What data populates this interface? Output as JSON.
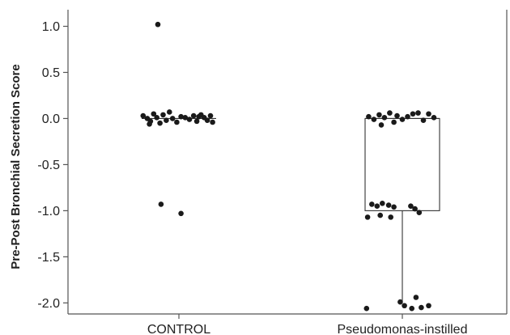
{
  "chart_data": {
    "type": "scatter",
    "subtype": "box-plot-with-jittered-points",
    "title": "",
    "xlabel": "",
    "ylabel": "Pre-Post Bronchial Secretion Score",
    "ylim": [
      -2.12,
      1.18
    ],
    "y_ticks": [
      1.0,
      0.5,
      0.0,
      -0.5,
      -1.0,
      -1.5,
      -2.0
    ],
    "y_tick_labels": [
      "1.0",
      "0.5",
      "0.0",
      "-0.5",
      "-1.0",
      "-1.5",
      "-2.0"
    ],
    "categories": [
      "CONTROL",
      "Pseudomonas-instilled"
    ],
    "grid": false,
    "legend": "none",
    "colors": {
      "points": "#1a1a1a",
      "box": "#333333",
      "axis": "#555555"
    },
    "series": [
      {
        "category": "CONTROL",
        "box": {
          "min": 0.0,
          "q1": 0.0,
          "median": 0.0,
          "q3": 0.0,
          "max": 0.0
        },
        "points": [
          {
            "x": -0.2,
            "y": 1.02
          },
          {
            "x": -0.34,
            "y": 0.03
          },
          {
            "x": -0.3,
            "y": 0.0
          },
          {
            "x": -0.27,
            "y": -0.03
          },
          {
            "x": -0.24,
            "y": 0.05
          },
          {
            "x": -0.21,
            "y": 0.01
          },
          {
            "x": -0.18,
            "y": -0.05
          },
          {
            "x": -0.15,
            "y": 0.04
          },
          {
            "x": -0.12,
            "y": -0.02
          },
          {
            "x": -0.09,
            "y": 0.07
          },
          {
            "x": -0.06,
            "y": 0.0
          },
          {
            "x": -0.02,
            "y": -0.04
          },
          {
            "x": 0.02,
            "y": 0.02
          },
          {
            "x": 0.06,
            "y": 0.01
          },
          {
            "x": 0.1,
            "y": -0.01
          },
          {
            "x": 0.14,
            "y": 0.03
          },
          {
            "x": 0.17,
            "y": -0.03
          },
          {
            "x": 0.21,
            "y": 0.04
          },
          {
            "x": 0.24,
            "y": 0.01
          },
          {
            "x": 0.27,
            "y": -0.02
          },
          {
            "x": 0.3,
            "y": 0.03
          },
          {
            "x": 0.32,
            "y": -0.04
          },
          {
            "x": -0.28,
            "y": -0.06
          },
          {
            "x": 0.19,
            "y": 0.02
          },
          {
            "x": -0.17,
            "y": -0.93
          },
          {
            "x": 0.02,
            "y": -1.03
          }
        ]
      },
      {
        "category": "Pseudomonas-instilled",
        "box": {
          "min": -2.0,
          "q1": -1.0,
          "median": 0.0,
          "q3": 0.0,
          "max": 0.0
        },
        "points": [
          {
            "x": -0.32,
            "y": 0.02
          },
          {
            "x": -0.27,
            "y": -0.01
          },
          {
            "x": -0.22,
            "y": 0.04
          },
          {
            "x": -0.17,
            "y": 0.01
          },
          {
            "x": -0.12,
            "y": 0.06
          },
          {
            "x": -0.08,
            "y": -0.04
          },
          {
            "x": -0.05,
            "y": 0.03
          },
          {
            "x": 0.0,
            "y": -0.01
          },
          {
            "x": 0.05,
            "y": 0.02
          },
          {
            "x": 0.1,
            "y": 0.05
          },
          {
            "x": 0.15,
            "y": 0.06
          },
          {
            "x": 0.2,
            "y": -0.02
          },
          {
            "x": 0.25,
            "y": 0.05
          },
          {
            "x": 0.3,
            "y": 0.01
          },
          {
            "x": -0.2,
            "y": -0.07
          },
          {
            "x": -0.29,
            "y": -0.93
          },
          {
            "x": -0.24,
            "y": -0.95
          },
          {
            "x": -0.19,
            "y": -0.92
          },
          {
            "x": -0.13,
            "y": -0.94
          },
          {
            "x": -0.08,
            "y": -0.96
          },
          {
            "x": 0.08,
            "y": -0.95
          },
          {
            "x": 0.12,
            "y": -0.98
          },
          {
            "x": 0.16,
            "y": -1.02
          },
          {
            "x": -0.33,
            "y": -1.07
          },
          {
            "x": -0.21,
            "y": -1.05
          },
          {
            "x": -0.11,
            "y": -1.07
          },
          {
            "x": -0.34,
            "y": -2.06
          },
          {
            "x": -0.02,
            "y": -1.99
          },
          {
            "x": 0.02,
            "y": -2.03
          },
          {
            "x": 0.09,
            "y": -2.06
          },
          {
            "x": 0.13,
            "y": -1.94
          },
          {
            "x": 0.18,
            "y": -2.05
          },
          {
            "x": 0.25,
            "y": -2.03
          }
        ]
      }
    ]
  }
}
